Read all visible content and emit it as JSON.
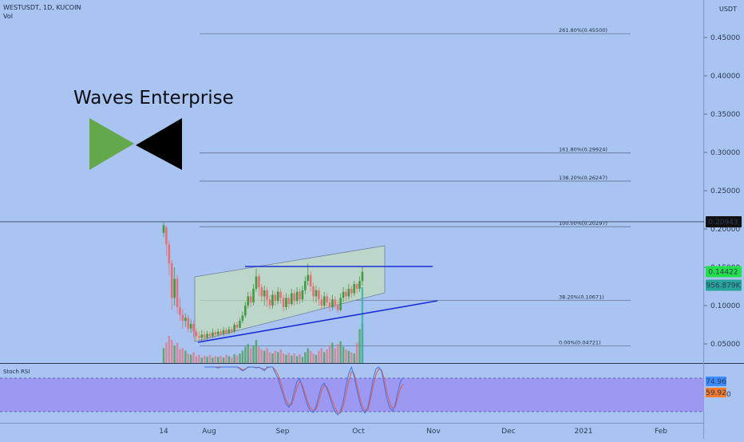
{
  "header": {
    "symbol_line": "WESTUSDT, 1D, KUCOIN",
    "vol_label": "Vol",
    "currency": "USDT"
  },
  "annotation_title": "Waves Enterprise",
  "indicator": {
    "label": "Stoch RSI"
  },
  "colors": {
    "background": "#a9c4f0",
    "up": "#3f9b3f",
    "down": "#e86f78",
    "channel_fill": "#c6e2b4",
    "blue_line": "#1a2fd8",
    "rsi_band": "#9b93f2",
    "k_line": "#3f74e8",
    "d_line": "#e85a3a",
    "logo_green": "#63a84b",
    "logo_black": "#000000"
  },
  "chart_data": {
    "type": "candlestick",
    "title": "WESTUSDT, 1D, KUCOIN",
    "y_axis": {
      "unit": "USDT",
      "ticks": [
        "0.45000",
        "0.40000",
        "0.35000",
        "0.30000",
        "0.25000",
        "0.20000",
        "0.15000",
        "0.10000",
        "0.05000"
      ],
      "range": [
        0.0,
        0.49
      ]
    },
    "x_axis": {
      "ticks": [
        "14",
        "Aug",
        "Sep",
        "Oct",
        "Nov",
        "Dec",
        "2021",
        "Feb"
      ]
    },
    "price_labels": [
      {
        "value": "0.20943",
        "price": 0.20943,
        "bg": "#111111",
        "fg": "#ffffff"
      },
      {
        "value": "0.14422",
        "price": 0.14422,
        "bg": "#22e04a",
        "fg": "#0b2a10"
      },
      {
        "value": "956.879K",
        "price": 0.1265,
        "bg": "#27a59a",
        "fg": "#ffffff"
      }
    ],
    "fib_levels": [
      {
        "label": "261.80%(0.45500)",
        "price": 0.455
      },
      {
        "label": "161.80%(0.29924)",
        "price": 0.29924
      },
      {
        "label": "138.20%(0.26247)",
        "price": 0.26247
      },
      {
        "label": "100.00%(0.20297)",
        "price": 0.20297
      },
      {
        "label": "38.20%(0.10671)",
        "price": 0.10671
      },
      {
        "label": "0.00%(0.04721)",
        "price": 0.04721
      }
    ],
    "candles": [
      {
        "day": 0,
        "o": 0.195,
        "c": 0.205,
        "h": 0.21,
        "l": 0.19
      },
      {
        "day": 1,
        "o": 0.202,
        "c": 0.18,
        "h": 0.205,
        "l": 0.165
      },
      {
        "day": 2,
        "o": 0.18,
        "c": 0.155,
        "h": 0.185,
        "l": 0.14
      },
      {
        "day": 3,
        "o": 0.155,
        "c": 0.11,
        "h": 0.16,
        "l": 0.095
      },
      {
        "day": 4,
        "o": 0.11,
        "c": 0.135,
        "h": 0.15,
        "l": 0.1
      },
      {
        "day": 5,
        "o": 0.135,
        "c": 0.098,
        "h": 0.14,
        "l": 0.09
      },
      {
        "day": 6,
        "o": 0.098,
        "c": 0.088,
        "h": 0.11,
        "l": 0.08
      },
      {
        "day": 7,
        "o": 0.088,
        "c": 0.08,
        "h": 0.095,
        "l": 0.07
      },
      {
        "day": 8,
        "o": 0.08,
        "c": 0.084,
        "h": 0.09,
        "l": 0.072
      },
      {
        "day": 9,
        "o": 0.084,
        "c": 0.07,
        "h": 0.088,
        "l": 0.065
      },
      {
        "day": 10,
        "o": 0.07,
        "c": 0.076,
        "h": 0.082,
        "l": 0.064
      },
      {
        "day": 11,
        "o": 0.076,
        "c": 0.066,
        "h": 0.08,
        "l": 0.058
      },
      {
        "day": 12,
        "o": 0.066,
        "c": 0.06,
        "h": 0.07,
        "l": 0.055
      },
      {
        "day": 13,
        "o": 0.06,
        "c": 0.058,
        "h": 0.066,
        "l": 0.052
      },
      {
        "day": 14,
        "o": 0.058,
        "c": 0.062,
        "h": 0.068,
        "l": 0.054
      },
      {
        "day": 15,
        "o": 0.062,
        "c": 0.058,
        "h": 0.066,
        "l": 0.053
      },
      {
        "day": 16,
        "o": 0.058,
        "c": 0.063,
        "h": 0.067,
        "l": 0.055
      },
      {
        "day": 17,
        "o": 0.063,
        "c": 0.06,
        "h": 0.066,
        "l": 0.056
      },
      {
        "day": 18,
        "o": 0.06,
        "c": 0.065,
        "h": 0.07,
        "l": 0.057
      },
      {
        "day": 19,
        "o": 0.065,
        "c": 0.062,
        "h": 0.068,
        "l": 0.058
      },
      {
        "day": 20,
        "o": 0.062,
        "c": 0.066,
        "h": 0.07,
        "l": 0.059
      },
      {
        "day": 21,
        "o": 0.066,
        "c": 0.063,
        "h": 0.069,
        "l": 0.06
      },
      {
        "day": 22,
        "o": 0.063,
        "c": 0.068,
        "h": 0.072,
        "l": 0.06
      },
      {
        "day": 23,
        "o": 0.068,
        "c": 0.064,
        "h": 0.071,
        "l": 0.061
      },
      {
        "day": 24,
        "o": 0.064,
        "c": 0.069,
        "h": 0.073,
        "l": 0.062
      },
      {
        "day": 25,
        "o": 0.069,
        "c": 0.066,
        "h": 0.072,
        "l": 0.063
      },
      {
        "day": 26,
        "o": 0.066,
        "c": 0.075,
        "h": 0.078,
        "l": 0.064
      },
      {
        "day": 27,
        "o": 0.075,
        "c": 0.071,
        "h": 0.079,
        "l": 0.068
      },
      {
        "day": 28,
        "o": 0.071,
        "c": 0.08,
        "h": 0.084,
        "l": 0.07
      },
      {
        "day": 29,
        "o": 0.08,
        "c": 0.087,
        "h": 0.092,
        "l": 0.077
      },
      {
        "day": 30,
        "o": 0.087,
        "c": 0.1,
        "h": 0.105,
        "l": 0.084
      },
      {
        "day": 31,
        "o": 0.1,
        "c": 0.112,
        "h": 0.118,
        "l": 0.096
      },
      {
        "day": 32,
        "o": 0.112,
        "c": 0.104,
        "h": 0.118,
        "l": 0.098
      },
      {
        "day": 33,
        "o": 0.104,
        "c": 0.122,
        "h": 0.128,
        "l": 0.1
      },
      {
        "day": 34,
        "o": 0.122,
        "c": 0.138,
        "h": 0.148,
        "l": 0.118
      },
      {
        "day": 35,
        "o": 0.138,
        "c": 0.124,
        "h": 0.142,
        "l": 0.112
      },
      {
        "day": 36,
        "o": 0.124,
        "c": 0.112,
        "h": 0.128,
        "l": 0.105
      },
      {
        "day": 37,
        "o": 0.112,
        "c": 0.12,
        "h": 0.126,
        "l": 0.1
      },
      {
        "day": 38,
        "o": 0.12,
        "c": 0.108,
        "h": 0.124,
        "l": 0.098
      },
      {
        "day": 39,
        "o": 0.108,
        "c": 0.1,
        "h": 0.114,
        "l": 0.095
      },
      {
        "day": 40,
        "o": 0.1,
        "c": 0.114,
        "h": 0.12,
        "l": 0.096
      },
      {
        "day": 41,
        "o": 0.114,
        "c": 0.106,
        "h": 0.118,
        "l": 0.1
      },
      {
        "day": 42,
        "o": 0.106,
        "c": 0.118,
        "h": 0.124,
        "l": 0.102
      },
      {
        "day": 43,
        "o": 0.118,
        "c": 0.11,
        "h": 0.122,
        "l": 0.103
      },
      {
        "day": 44,
        "o": 0.11,
        "c": 0.098,
        "h": 0.114,
        "l": 0.092
      },
      {
        "day": 45,
        "o": 0.098,
        "c": 0.11,
        "h": 0.116,
        "l": 0.094
      },
      {
        "day": 46,
        "o": 0.11,
        "c": 0.102,
        "h": 0.114,
        "l": 0.096
      },
      {
        "day": 47,
        "o": 0.102,
        "c": 0.116,
        "h": 0.122,
        "l": 0.099
      },
      {
        "day": 48,
        "o": 0.116,
        "c": 0.106,
        "h": 0.12,
        "l": 0.1
      },
      {
        "day": 49,
        "o": 0.106,
        "c": 0.118,
        "h": 0.124,
        "l": 0.102
      },
      {
        "day": 50,
        "o": 0.118,
        "c": 0.108,
        "h": 0.122,
        "l": 0.102
      },
      {
        "day": 51,
        "o": 0.108,
        "c": 0.12,
        "h": 0.126,
        "l": 0.104
      },
      {
        "day": 52,
        "o": 0.12,
        "c": 0.132,
        "h": 0.138,
        "l": 0.115
      },
      {
        "day": 53,
        "o": 0.132,
        "c": 0.14,
        "h": 0.155,
        "l": 0.126
      },
      {
        "day": 54,
        "o": 0.14,
        "c": 0.125,
        "h": 0.145,
        "l": 0.118
      },
      {
        "day": 55,
        "o": 0.125,
        "c": 0.112,
        "h": 0.13,
        "l": 0.105
      },
      {
        "day": 56,
        "o": 0.112,
        "c": 0.12,
        "h": 0.126,
        "l": 0.104
      },
      {
        "day": 57,
        "o": 0.12,
        "c": 0.108,
        "h": 0.124,
        "l": 0.1
      },
      {
        "day": 58,
        "o": 0.108,
        "c": 0.1,
        "h": 0.114,
        "l": 0.095
      },
      {
        "day": 59,
        "o": 0.1,
        "c": 0.112,
        "h": 0.118,
        "l": 0.096
      },
      {
        "day": 60,
        "o": 0.112,
        "c": 0.104,
        "h": 0.116,
        "l": 0.099
      },
      {
        "day": 61,
        "o": 0.104,
        "c": 0.098,
        "h": 0.11,
        "l": 0.092
      },
      {
        "day": 62,
        "o": 0.098,
        "c": 0.108,
        "h": 0.114,
        "l": 0.094
      },
      {
        "day": 63,
        "o": 0.108,
        "c": 0.1,
        "h": 0.112,
        "l": 0.096
      },
      {
        "day": 64,
        "o": 0.1,
        "c": 0.094,
        "h": 0.106,
        "l": 0.09
      },
      {
        "day": 65,
        "o": 0.094,
        "c": 0.11,
        "h": 0.116,
        "l": 0.092
      },
      {
        "day": 66,
        "o": 0.11,
        "c": 0.118,
        "h": 0.124,
        "l": 0.104
      },
      {
        "day": 67,
        "o": 0.118,
        "c": 0.112,
        "h": 0.122,
        "l": 0.106
      },
      {
        "day": 68,
        "o": 0.112,
        "c": 0.122,
        "h": 0.128,
        "l": 0.108
      },
      {
        "day": 69,
        "o": 0.122,
        "c": 0.116,
        "h": 0.126,
        "l": 0.11
      },
      {
        "day": 70,
        "o": 0.116,
        "c": 0.128,
        "h": 0.132,
        "l": 0.112
      },
      {
        "day": 71,
        "o": 0.128,
        "c": 0.122,
        "h": 0.13,
        "l": 0.116
      },
      {
        "day": 72,
        "o": 0.122,
        "c": 0.132,
        "h": 0.138,
        "l": 0.118
      },
      {
        "day": 73,
        "o": 0.132,
        "c": 0.144,
        "h": 0.15,
        "l": 0.126
      }
    ],
    "volume": [
      22,
      30,
      40,
      34,
      26,
      30,
      20,
      22,
      18,
      14,
      12,
      16,
      10,
      12,
      8,
      11,
      9,
      12,
      8,
      10,
      9,
      11,
      8,
      12,
      10,
      8,
      13,
      11,
      14,
      18,
      24,
      28,
      22,
      26,
      34,
      24,
      20,
      18,
      22,
      16,
      14,
      18,
      16,
      20,
      14,
      12,
      15,
      11,
      14,
      10,
      13,
      9,
      16,
      22,
      18,
      14,
      12,
      18,
      22,
      16,
      20,
      26,
      30,
      22,
      28,
      32,
      24,
      20,
      18,
      16,
      14,
      30,
      50,
      58
    ],
    "stoch_rsi": {
      "ticks": [
        "40.00"
      ],
      "k_value": "74.96",
      "d_value": "59.92",
      "k": [
        100,
        100,
        100,
        100,
        100,
        98,
        100,
        100,
        100,
        100,
        100,
        100,
        100,
        96,
        92,
        95,
        100,
        100,
        100,
        98,
        100,
        96,
        92,
        100,
        100,
        100,
        88,
        76,
        58,
        40,
        22,
        16,
        26,
        50,
        70,
        76,
        56,
        36,
        18,
        8,
        5,
        18,
        40,
        60,
        66,
        54,
        38,
        20,
        6,
        0,
        8,
        30,
        62,
        86,
        100,
        80,
        52,
        28,
        10,
        4,
        16,
        44,
        76,
        96,
        100,
        92,
        64,
        34,
        16,
        8,
        20,
        48,
        70,
        78
      ],
      "d": [
        100,
        100,
        100,
        100,
        100,
        100,
        100,
        100,
        100,
        100,
        100,
        100,
        100,
        98,
        94,
        96,
        99,
        100,
        100,
        99,
        99,
        97,
        95,
        98,
        100,
        100,
        94,
        84,
        68,
        48,
        30,
        20,
        22,
        38,
        58,
        70,
        62,
        44,
        26,
        14,
        8,
        12,
        28,
        50,
        62,
        58,
        44,
        28,
        14,
        4,
        4,
        18,
        44,
        70,
        90,
        86,
        62,
        38,
        18,
        8,
        10,
        32,
        62,
        84,
        96,
        94,
        76,
        48,
        26,
        14,
        16,
        36,
        56,
        64
      ]
    }
  }
}
